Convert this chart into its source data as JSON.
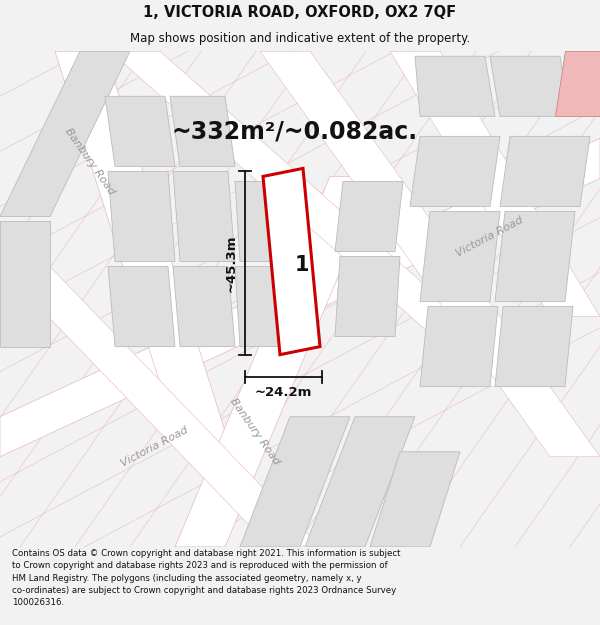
{
  "title": "1, VICTORIA ROAD, OXFORD, OX2 7QF",
  "subtitle": "Map shows position and indicative extent of the property.",
  "area_text": "~332m²/~0.082ac.",
  "label_number": "1",
  "dim_height": "~45.3m",
  "dim_width": "~24.2m",
  "road_label_banbury1": "Banbury Road",
  "road_label_banbury2": "Banbury Road",
  "road_label_victoria1": "Victoria Road",
  "road_label_victoria2": "Victoria Road",
  "footer_line1": "Contains OS data © Crown copyright and database right 2021. This information is subject",
  "footer_line2": "to Crown copyright and database rights 2023 and is reproduced with the permission of",
  "footer_line3": "HM Land Registry. The polygons (including the associated geometry, namely x, y",
  "footer_line4": "co-ordinates) are subject to Crown copyright and database rights 2023 Ordnance Survey",
  "footer_line5": "100026316.",
  "bg_color": "#f2f2f2",
  "map_bg": "#eeecec",
  "road_fill": "#ffffff",
  "road_stroke": "#e8b8b8",
  "block_fill_light": "#dedede",
  "block_fill_dark": "#c8c8c8",
  "block_stroke": "#bbbbbb",
  "highlight_fill": "#f0b8b8",
  "highlight_stroke": "#d08080",
  "property_fill": "#ffffff",
  "property_stroke": "#cc0000",
  "dim_color": "#111111",
  "text_color": "#111111",
  "road_text_color": "#999999",
  "street_line_color": "#e8aaaa"
}
